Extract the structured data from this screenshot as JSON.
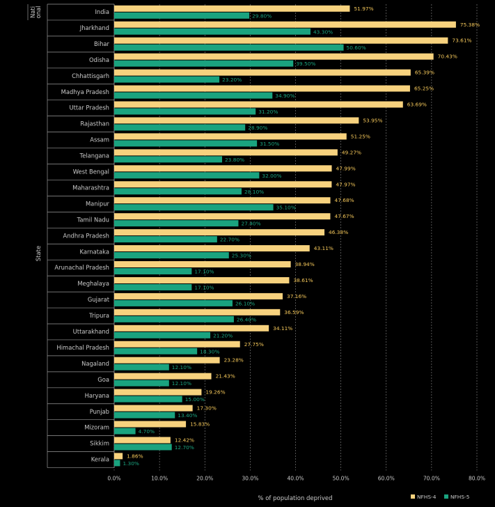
{
  "chart_data": {
    "type": "bar",
    "orientation": "horizontal",
    "xlabel": "% of population deprived",
    "ylabel": "State",
    "xlim": [
      0,
      80
    ],
    "xticks": [
      "0.0%",
      "10.0%",
      "20.0%",
      "30.0%",
      "40.0%",
      "50.0%",
      "60.0%",
      "70.0%",
      "80.0%"
    ],
    "group_labels": [
      {
        "label": "Nati onal",
        "rows": 1
      }
    ],
    "categories": [
      "India",
      "Jharkhand",
      "Bihar",
      "Odisha",
      "Chhattisgarh",
      "Madhya Pradesh",
      "Uttar Pradesh",
      "Rajasthan",
      "Assam",
      "Telangana",
      "West Bengal",
      "Maharashtra",
      "Manipur",
      "Tamil Nadu",
      "Andhra Pradesh",
      "Karnataka",
      "Arunachal Pradesh",
      "Meghalaya",
      "Gujarat",
      "Tripura",
      "Uttarakhand",
      "Himachal Pradesh",
      "Nagaland",
      "Goa",
      "Haryana",
      "Punjab",
      "Mizoram",
      "Sikkim",
      "Kerala"
    ],
    "series": [
      {
        "name": "NFHS-4",
        "color": "#f7d27e",
        "label_color": "#f4c75a",
        "values": [
          51.97,
          75.38,
          73.61,
          70.43,
          65.39,
          65.25,
          63.69,
          53.95,
          51.25,
          49.27,
          47.99,
          47.97,
          47.68,
          47.67,
          46.38,
          43.11,
          38.94,
          38.61,
          37.16,
          36.59,
          34.11,
          27.75,
          23.28,
          21.43,
          19.26,
          17.3,
          15.83,
          12.42,
          1.86
        ],
        "labels": [
          "51.97%",
          "75.38%",
          "73.61%",
          "70.43%",
          "65.39%",
          "65.25%",
          "63.69%",
          "53.95%",
          "51.25%",
          "49.27%",
          "47.99%",
          "47.97%",
          "47.68%",
          "47.67%",
          "46.38%",
          "43.11%",
          "38.94%",
          "38.61%",
          "37.16%",
          "36.59%",
          "34.11%",
          "27.75%",
          "23.28%",
          "21.43%",
          "19.26%",
          "17.30%",
          "15.83%",
          "12.42%",
          "1.86%"
        ]
      },
      {
        "name": "NFHS-5",
        "color": "#1aa37f",
        "label_color": "#1aa37f",
        "values": [
          29.8,
          43.3,
          50.6,
          39.5,
          23.2,
          34.9,
          31.2,
          28.9,
          31.5,
          23.8,
          32.0,
          28.1,
          35.1,
          27.4,
          22.7,
          25.3,
          17.1,
          17.1,
          26.1,
          26.4,
          21.2,
          18.3,
          12.1,
          12.1,
          15.0,
          13.4,
          4.7,
          12.7,
          1.3
        ],
        "labels": [
          "29.80%",
          "43.30%",
          "50.60%",
          "39.50%",
          "23.20%",
          "34.90%",
          "31.20%",
          "28.90%",
          "31.50%",
          "23.80%",
          "32.00%",
          "28.10%",
          "35.10%",
          "27.40%",
          "22.70%",
          "25.30%",
          "17.10%",
          "17.10%",
          "26.10%",
          "26.40%",
          "21.20%",
          "18.30%",
          "12.10%",
          "12.10%",
          "15.00%",
          "13.40%",
          "4.70%",
          "12.70%",
          "1.30%"
        ]
      }
    ],
    "legend": {
      "position": "bottom-right",
      "entries": [
        "NFHS-4",
        "NFHS-5"
      ]
    },
    "grid": true
  }
}
